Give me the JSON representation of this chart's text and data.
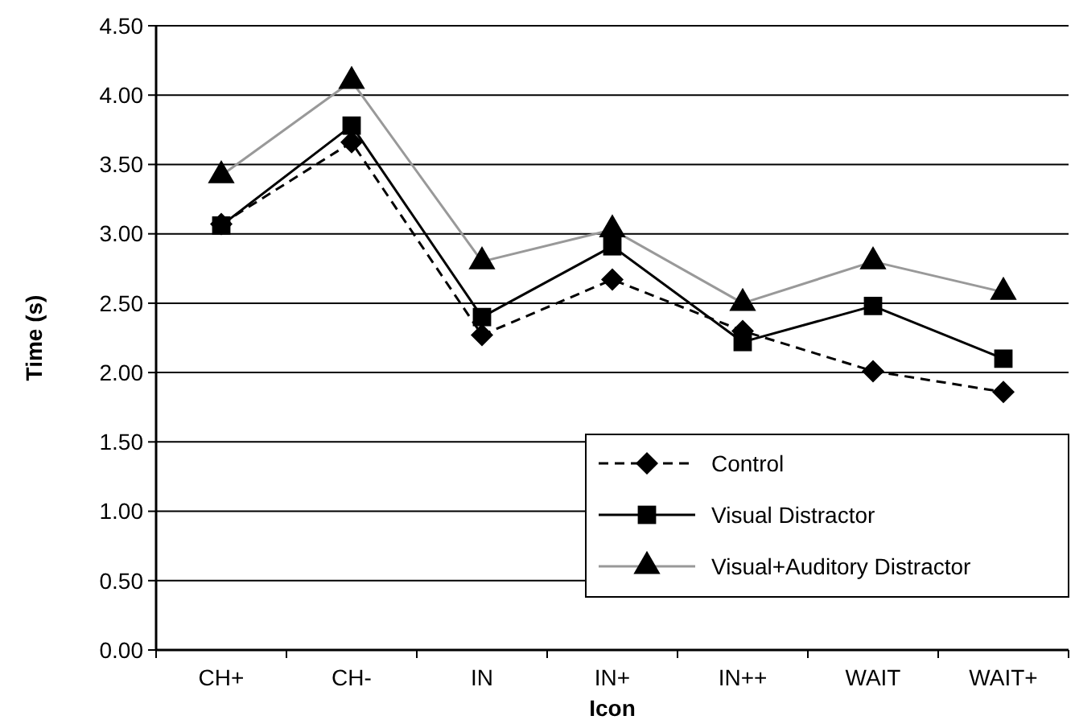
{
  "chart_data": {
    "type": "line",
    "xlabel": "Icon",
    "ylabel": "Time (s)",
    "categories": [
      "CH+",
      "CH-",
      "IN",
      "IN+",
      "IN++",
      "WAIT",
      "WAIT+"
    ],
    "ylim": [
      0,
      4.5
    ],
    "yticks": [
      {
        "value": 0,
        "label": "0.00"
      },
      {
        "value": 0.5,
        "label": "0.50"
      },
      {
        "value": 1,
        "label": "1.00"
      },
      {
        "value": 1.5,
        "label": "1.50"
      },
      {
        "value": 2,
        "label": "2.00"
      },
      {
        "value": 2.5,
        "label": "2.50"
      },
      {
        "value": 3,
        "label": "3.00"
      },
      {
        "value": 3.5,
        "label": "3.50"
      },
      {
        "value": 4,
        "label": "4.00"
      },
      {
        "value": 4.5,
        "label": "4.50"
      }
    ],
    "grid": "y",
    "legend": "bottom right",
    "series": [
      {
        "name": "Control",
        "color": "#000000",
        "marker": "diamond",
        "line_style": "dashed",
        "values": [
          3.07,
          3.66,
          2.27,
          2.67,
          2.3,
          2.01,
          1.86
        ]
      },
      {
        "name": "Visual Distractor",
        "color": "#000000",
        "marker": "square",
        "line_style": "solid",
        "values": [
          3.06,
          3.78,
          2.4,
          2.91,
          2.22,
          2.48,
          2.1
        ]
      },
      {
        "name": "Visual+Auditory Distractor",
        "color": "#999999",
        "marker": "triangle",
        "line_style": "solid",
        "values": [
          3.42,
          4.1,
          2.8,
          3.03,
          2.5,
          2.8,
          2.58
        ]
      }
    ]
  }
}
